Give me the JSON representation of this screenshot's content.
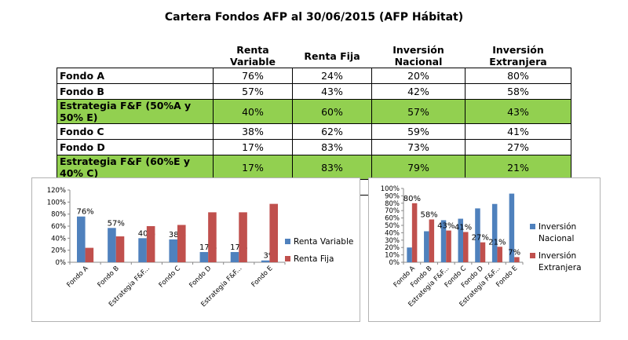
{
  "title": "Cartera Fondos AFP al 30/06/2015 (AFP Hábitat)",
  "table": {
    "headers": [
      "",
      "Renta Variable",
      "Renta Fija",
      "Inversión Nacional",
      "Inversión Extranjera"
    ],
    "rows": [
      {
        "name": "Fondo A",
        "highlight": false,
        "values": [
          "76%",
          "24%",
          "20%",
          "80%"
        ]
      },
      {
        "name": "Fondo B",
        "highlight": false,
        "values": [
          "57%",
          "43%",
          "42%",
          "58%"
        ]
      },
      {
        "name": "Estrategia F&F (50%A y 50% E)",
        "highlight": true,
        "values": [
          "40%",
          "60%",
          "57%",
          "43%"
        ]
      },
      {
        "name": "Fondo C",
        "highlight": false,
        "values": [
          "38%",
          "62%",
          "59%",
          "41%"
        ]
      },
      {
        "name": "Fondo D",
        "highlight": false,
        "values": [
          "17%",
          "83%",
          "73%",
          "27%"
        ]
      },
      {
        "name": "Estrategia F&F (60%E y 40% C)",
        "highlight": true,
        "values": [
          "17%",
          "83%",
          "79%",
          "21%"
        ]
      },
      {
        "name": "Fondo E",
        "highlight": false,
        "values": [
          "3%",
          "97%",
          "93%",
          "7%"
        ]
      }
    ]
  },
  "colors": {
    "blue": "#4f81bd",
    "red": "#c0504d",
    "highlight": "#92d050"
  },
  "chart_data": [
    {
      "type": "bar",
      "categories": [
        "Fondo A",
        "Fondo B",
        "Estrategia F&F...",
        "Fondo C",
        "Fondo D",
        "Estrategia F&F...",
        "Fondo E"
      ],
      "series": [
        {
          "name": "Renta Variable",
          "values": [
            76,
            57,
            40,
            38,
            17,
            17,
            3
          ],
          "color": "#4f81bd",
          "labels": [
            "76%",
            "57%",
            "40%",
            "38%",
            "17%",
            "17%",
            "3%"
          ]
        },
        {
          "name": "Renta Fija",
          "values": [
            24,
            43,
            60,
            62,
            83,
            83,
            97
          ],
          "color": "#c0504d"
        }
      ],
      "ytick_labels": [
        "0%",
        "20%",
        "40%",
        "60%",
        "80%",
        "100%",
        "120%"
      ],
      "ylim": [
        0,
        120
      ],
      "legend": "right",
      "grid": false
    },
    {
      "type": "bar",
      "categories": [
        "Fondo A",
        "Fondo B",
        "Estrategia F&F...",
        "Fondo C",
        "Fondo D",
        "Estrategia F&F...",
        "Fondo E"
      ],
      "series": [
        {
          "name": "Inversión Nacional",
          "values": [
            20,
            42,
            57,
            59,
            73,
            79,
            93
          ],
          "color": "#4f81bd"
        },
        {
          "name": "Inversión Extranjera",
          "values": [
            80,
            58,
            43,
            41,
            27,
            21,
            7
          ],
          "color": "#c0504d",
          "labels": [
            "80%",
            "58%",
            "43%",
            "41%",
            "27%",
            "21%",
            "7%"
          ]
        }
      ],
      "ytick_labels": [
        "0%",
        "10%",
        "20%",
        "30%",
        "40%",
        "50%",
        "60%",
        "70%",
        "80%",
        "90%",
        "100%"
      ],
      "ylim": [
        0,
        100
      ],
      "legend": "right",
      "grid": false
    }
  ]
}
